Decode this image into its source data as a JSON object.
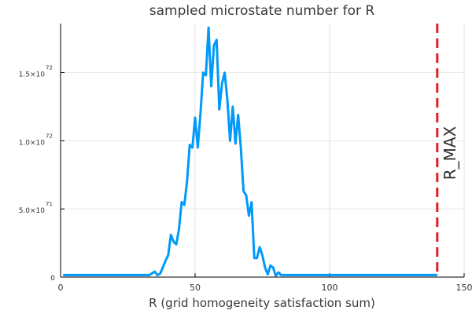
{
  "chart_data": {
    "type": "line",
    "title": "sampled microstate number for R",
    "xlabel": "R (grid homogeneity satisfaction sum)",
    "ylabel": "",
    "xlim": [
      0,
      150
    ],
    "ylim": [
      0,
      1.86e+72
    ],
    "grid": true,
    "legend": "none",
    "x_ticks": [
      {
        "value": 0,
        "label": "0"
      },
      {
        "value": 50,
        "label": "50"
      },
      {
        "value": 100,
        "label": "100"
      },
      {
        "value": 150,
        "label": "150"
      }
    ],
    "y_ticks": [
      {
        "value": 0,
        "base": "0",
        "exp": ""
      },
      {
        "value": 5e+71,
        "base": "5.0×10",
        "exp": "71"
      },
      {
        "value": 1e+72,
        "base": "1.0×10",
        "exp": "72"
      },
      {
        "value": 1.5e+72,
        "base": "1.5×10",
        "exp": "72"
      }
    ],
    "series": [
      {
        "color": "#009AFA",
        "points": [
          [
            1,
            1.5e+70
          ],
          [
            10,
            1.5e+70
          ],
          [
            20,
            1.5e+70
          ],
          [
            30,
            1.5e+70
          ],
          [
            33,
            1.5e+70
          ],
          [
            35,
            4e+70
          ],
          [
            36,
            1.5e+70
          ],
          [
            37,
            2.5e+70
          ],
          [
            38,
            7e+70
          ],
          [
            39,
            1.2e+71
          ],
          [
            40,
            1.6e+71
          ],
          [
            41,
            3.1e+71
          ],
          [
            42,
            2.6e+71
          ],
          [
            43,
            2.4e+71
          ],
          [
            44,
            3.5e+71
          ],
          [
            45,
            5.5e+71
          ],
          [
            46,
            5.3e+71
          ],
          [
            47,
            7e+71
          ],
          [
            48,
            9.7e+71
          ],
          [
            49,
            9.5e+71
          ],
          [
            50,
            1.17e+72
          ],
          [
            51,
            9.5e+71
          ],
          [
            52,
            1.2e+72
          ],
          [
            53,
            1.5e+72
          ],
          [
            54,
            1.48e+72
          ],
          [
            55,
            1.83e+72
          ],
          [
            56,
            1.4e+72
          ],
          [
            57,
            1.7e+72
          ],
          [
            58,
            1.74e+72
          ],
          [
            59,
            1.23e+72
          ],
          [
            60,
            1.42e+72
          ],
          [
            61,
            1.5e+72
          ],
          [
            62,
            1.3e+72
          ],
          [
            63,
            1e+72
          ],
          [
            64,
            1.25e+72
          ],
          [
            65,
            9.8e+71
          ],
          [
            66,
            1.19e+72
          ],
          [
            67,
            9.5e+71
          ],
          [
            68,
            6.3e+71
          ],
          [
            69,
            6e+71
          ],
          [
            70,
            4.5e+71
          ],
          [
            71,
            5.5e+71
          ],
          [
            72,
            1.4e+71
          ],
          [
            73,
            1.4e+71
          ],
          [
            74,
            2.2e+71
          ],
          [
            75,
            1.6e+71
          ],
          [
            76,
            7e+70
          ],
          [
            77,
            2e+70
          ],
          [
            78,
            8.5e+70
          ],
          [
            79,
            7e+70
          ],
          [
            80,
            1e+70
          ],
          [
            81,
            3.5e+70
          ],
          [
            82,
            1.5e+70
          ],
          [
            90,
            1.5e+70
          ],
          [
            100,
            1.5e+70
          ],
          [
            110,
            1.5e+70
          ],
          [
            120,
            1.5e+70
          ],
          [
            130,
            1.5e+70
          ],
          [
            140,
            1.5e+70
          ]
        ]
      }
    ],
    "vline": {
      "x": 140,
      "label": "R_MAX",
      "color": "#E8191F",
      "style": "dashed"
    }
  }
}
